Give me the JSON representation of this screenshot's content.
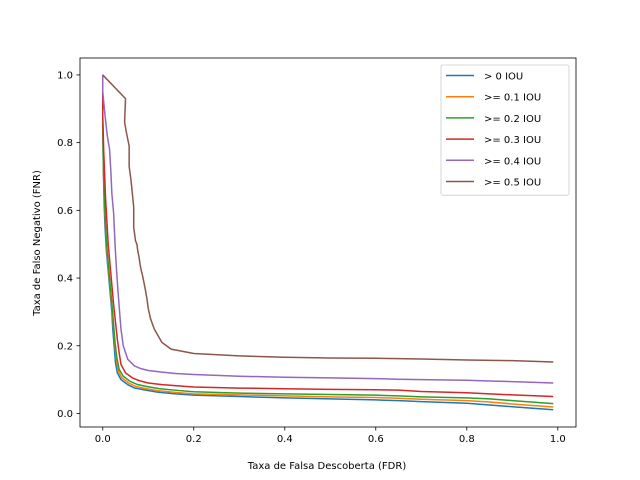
{
  "chart_data": {
    "type": "line",
    "xlabel": "Taxa de Falsa Descoberta (FDR)",
    "ylabel": "Taxa de Falso Negativo (FNR)",
    "xlim": [
      -0.05,
      1.04
    ],
    "ylim": [
      -0.04,
      1.05
    ],
    "xticks": [
      0.0,
      0.2,
      0.4,
      0.6,
      0.8,
      1.0
    ],
    "xtick_labels": [
      "0.0",
      "0.2",
      "0.4",
      "0.6",
      "0.8",
      "1.0"
    ],
    "yticks": [
      0.0,
      0.2,
      0.4,
      0.6,
      0.8,
      1.0
    ],
    "ytick_labels": [
      "0.0",
      "0.2",
      "0.4",
      "0.6",
      "0.8",
      "1.0"
    ],
    "grid": false,
    "legend_position": "top-right",
    "series": [
      {
        "name": "> 0 IOU",
        "color": "#1f77b4",
        "x": [
          0.0,
          0.0,
          0.001,
          0.002,
          0.003,
          0.005,
          0.008,
          0.012,
          0.016,
          0.02,
          0.022,
          0.025,
          0.028,
          0.032,
          0.04,
          0.055,
          0.07,
          0.09,
          0.12,
          0.16,
          0.2,
          0.3,
          0.4,
          0.5,
          0.6,
          0.65,
          0.7,
          0.8,
          0.85,
          0.9,
          0.99
        ],
        "y": [
          1.0,
          0.85,
          0.75,
          0.68,
          0.62,
          0.55,
          0.48,
          0.42,
          0.36,
          0.3,
          0.25,
          0.2,
          0.15,
          0.12,
          0.1,
          0.085,
          0.075,
          0.07,
          0.063,
          0.058,
          0.054,
          0.05,
          0.046,
          0.043,
          0.04,
          0.038,
          0.035,
          0.03,
          0.025,
          0.02,
          0.011
        ]
      },
      {
        "name": ">= 0.1 IOU",
        "color": "#ff7f0e",
        "x": [
          0.0,
          0.0,
          0.001,
          0.002,
          0.004,
          0.006,
          0.009,
          0.013,
          0.017,
          0.021,
          0.024,
          0.027,
          0.03,
          0.034,
          0.042,
          0.057,
          0.072,
          0.092,
          0.122,
          0.162,
          0.2,
          0.3,
          0.4,
          0.5,
          0.6,
          0.65,
          0.7,
          0.8,
          0.85,
          0.9,
          0.99
        ],
        "y": [
          1.0,
          0.86,
          0.76,
          0.69,
          0.62,
          0.55,
          0.48,
          0.42,
          0.36,
          0.3,
          0.25,
          0.2,
          0.16,
          0.125,
          0.105,
          0.09,
          0.08,
          0.074,
          0.067,
          0.062,
          0.058,
          0.055,
          0.052,
          0.049,
          0.047,
          0.045,
          0.042,
          0.038,
          0.034,
          0.028,
          0.019
        ]
      },
      {
        "name": ">= 0.2 IOU",
        "color": "#2ca02c",
        "x": [
          0.0,
          0.0,
          0.001,
          0.002,
          0.004,
          0.006,
          0.009,
          0.013,
          0.017,
          0.021,
          0.024,
          0.027,
          0.031,
          0.036,
          0.045,
          0.06,
          0.075,
          0.095,
          0.125,
          0.165,
          0.2,
          0.3,
          0.4,
          0.5,
          0.6,
          0.65,
          0.7,
          0.8,
          0.85,
          0.9,
          0.99
        ],
        "y": [
          1.0,
          0.87,
          0.77,
          0.7,
          0.63,
          0.56,
          0.49,
          0.43,
          0.37,
          0.31,
          0.26,
          0.21,
          0.165,
          0.13,
          0.11,
          0.095,
          0.086,
          0.08,
          0.073,
          0.068,
          0.064,
          0.06,
          0.058,
          0.056,
          0.054,
          0.052,
          0.049,
          0.046,
          0.043,
          0.038,
          0.029
        ]
      },
      {
        "name": ">= 0.3 IOU",
        "color": "#d62728",
        "x": [
          0.0,
          0.0,
          0.002,
          0.004,
          0.006,
          0.009,
          0.012,
          0.016,
          0.02,
          0.024,
          0.028,
          0.032,
          0.036,
          0.04,
          0.05,
          0.065,
          0.08,
          0.1,
          0.13,
          0.17,
          0.2,
          0.3,
          0.4,
          0.5,
          0.6,
          0.65,
          0.7,
          0.8,
          0.85,
          0.9,
          0.99
        ],
        "y": [
          1.0,
          0.88,
          0.78,
          0.71,
          0.64,
          0.57,
          0.5,
          0.44,
          0.38,
          0.32,
          0.27,
          0.22,
          0.18,
          0.145,
          0.12,
          0.105,
          0.097,
          0.09,
          0.085,
          0.081,
          0.078,
          0.075,
          0.073,
          0.071,
          0.07,
          0.069,
          0.065,
          0.061,
          0.058,
          0.055,
          0.05
        ]
      },
      {
        "name": ">= 0.4 IOU",
        "color": "#9467bd",
        "x": [
          0.0,
          0.0,
          0.005,
          0.01,
          0.015,
          0.018,
          0.02,
          0.024,
          0.027,
          0.03,
          0.033,
          0.037,
          0.04,
          0.045,
          0.055,
          0.07,
          0.085,
          0.1,
          0.13,
          0.16,
          0.2,
          0.3,
          0.4,
          0.5,
          0.6,
          0.65,
          0.7,
          0.8,
          0.85,
          0.9,
          0.99
        ],
        "y": [
          1.0,
          0.95,
          0.88,
          0.82,
          0.78,
          0.71,
          0.65,
          0.59,
          0.5,
          0.43,
          0.37,
          0.3,
          0.25,
          0.2,
          0.16,
          0.14,
          0.132,
          0.127,
          0.122,
          0.118,
          0.115,
          0.11,
          0.107,
          0.105,
          0.103,
          0.101,
          0.1,
          0.098,
          0.096,
          0.094,
          0.09
        ]
      },
      {
        "name": ">= 0.5 IOU",
        "color": "#8c564b",
        "x": [
          0.0,
          0.05,
          0.048,
          0.052,
          0.058,
          0.058,
          0.062,
          0.065,
          0.068,
          0.068,
          0.072,
          0.075,
          0.077,
          0.08,
          0.082,
          0.085,
          0.087,
          0.09,
          0.093,
          0.097,
          0.1,
          0.105,
          0.113,
          0.13,
          0.15,
          0.2,
          0.3,
          0.4,
          0.5,
          0.6,
          0.65,
          0.7,
          0.8,
          0.9,
          0.99
        ],
        "y": [
          1.0,
          0.93,
          0.86,
          0.83,
          0.79,
          0.73,
          0.69,
          0.65,
          0.61,
          0.55,
          0.51,
          0.5,
          0.48,
          0.46,
          0.44,
          0.42,
          0.41,
          0.39,
          0.37,
          0.34,
          0.31,
          0.28,
          0.25,
          0.21,
          0.19,
          0.177,
          0.17,
          0.166,
          0.164,
          0.163,
          0.162,
          0.161,
          0.158,
          0.156,
          0.152
        ]
      }
    ]
  }
}
